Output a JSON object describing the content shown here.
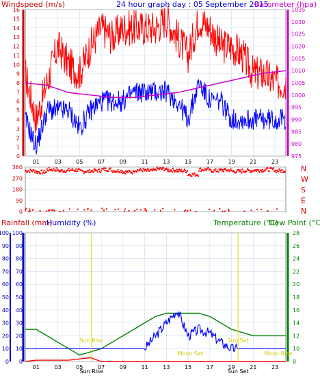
{
  "header": {
    "left_label": "Windspeed (m/s)",
    "title": "24 hour graph day : 05 September 2015",
    "right_label": "Barometer (hpa)"
  },
  "colors": {
    "bg": "#ffffff",
    "grid": "#ccddee",
    "frame": "#000000",
    "wind": "#ff0000",
    "gust": "#ff0000",
    "avg_wind": "#0000ff",
    "barometer": "#cc00cc",
    "winddir": "#ff0000",
    "rain": "#ff0000",
    "humidity": "#0000ff",
    "temperature": "#008000",
    "dewpoint": "#008000",
    "sun": "#dddd00",
    "moon": "#ddcc00"
  },
  "bottom_header": {
    "rain_label": "Rainfall (mm)",
    "hum_label": "Humidity (%)",
    "temp_label": "Temperature (°C)",
    "dew_label": "Dew Point (°C)"
  },
  "direction_labels": [
    "N",
    "W",
    "S",
    "E",
    "N"
  ],
  "event_labels": {
    "sun_rise": "Sun Rise",
    "sun_set": "Sun Set",
    "moon_set": "Moon Set",
    "moon_rise": "Moon Rise",
    "axis_sunrise": "Sun Rise",
    "axis_sunset": "Sun Set"
  },
  "chart_data": [
    {
      "type": "line",
      "name": "wind",
      "x_ticks": [
        "01",
        "03",
        "05",
        "07",
        "09",
        "11",
        "13",
        "15",
        "17",
        "19",
        "21",
        "23"
      ],
      "y_left_ticks": [
        "0",
        "1",
        "2",
        "3",
        "4",
        "5",
        "6",
        "7",
        "8",
        "9",
        "10",
        "11",
        "12",
        "13",
        "14",
        "15",
        "16"
      ],
      "y_right_ticks": [
        "975",
        "980",
        "985",
        "990",
        "995",
        "1000",
        "1005",
        "1010",
        "1015",
        "1020",
        "1025",
        "1030",
        "1035"
      ],
      "ylim_left": [
        0,
        16
      ],
      "ylim_right": [
        975,
        1035
      ],
      "series": [
        {
          "name": "Windspeed",
          "x": [
            0,
            1,
            2,
            3,
            4,
            5,
            6,
            7,
            8,
            9,
            10,
            11,
            12,
            13,
            14,
            15,
            16,
            17,
            18,
            19,
            20,
            21,
            22,
            23,
            24
          ],
          "values": [
            9,
            4,
            8,
            12,
            10,
            9,
            12,
            14,
            13,
            14,
            14,
            14,
            14,
            15,
            13,
            11,
            15,
            14,
            12,
            12,
            11,
            9,
            9,
            8,
            8
          ]
        },
        {
          "name": "Gust",
          "x": [
            0,
            1,
            2,
            3,
            4,
            5,
            6,
            7,
            8,
            9,
            10,
            11,
            12,
            13,
            14,
            15,
            16,
            17,
            18,
            19,
            20,
            21,
            22,
            23,
            24
          ],
          "values": [
            4,
            1,
            5,
            5,
            5,
            3,
            5,
            6,
            6,
            6,
            7,
            7,
            7,
            7,
            6,
            4,
            8,
            6,
            6,
            4,
            4,
            4,
            4,
            4,
            4
          ]
        },
        {
          "name": "Barometer",
          "x": [
            0,
            2,
            4,
            6,
            8,
            10,
            12,
            14,
            16,
            18,
            20,
            22,
            24
          ],
          "values": [
            1005,
            1004,
            1001,
            1000,
            999,
            999,
            1000,
            1001,
            1003,
            1005,
            1007,
            1009,
            1010
          ]
        }
      ]
    },
    {
      "type": "scatter",
      "name": "wind_direction",
      "ylim": [
        0,
        360
      ],
      "y_ticks": [
        "0",
        "90",
        "180",
        "270",
        "360"
      ],
      "x": [
        0,
        1,
        2,
        3,
        4,
        5,
        6,
        7,
        8,
        9,
        10,
        11,
        12,
        13,
        14,
        15,
        16,
        17,
        18,
        19,
        20,
        21,
        22,
        23,
        24
      ],
      "values": [
        330,
        320,
        340,
        330,
        335,
        325,
        330,
        340,
        330,
        320,
        335,
        330,
        345,
        335,
        330,
        300,
        340,
        330,
        335,
        325,
        330,
        335,
        340,
        330,
        335
      ]
    },
    {
      "type": "line",
      "name": "rain_humidity_temperature",
      "x_ticks": [
        "01",
        "03",
        "05",
        "07",
        "09",
        "11",
        "13",
        "15",
        "17",
        "19",
        "21",
        "23"
      ],
      "y_left_ticks": [
        "0",
        "10",
        "20",
        "30",
        "40",
        "50",
        "60",
        "70",
        "80",
        "90",
        "100"
      ],
      "y_right_ticks": [
        "8",
        "10",
        "12",
        "14",
        "16",
        "18",
        "20",
        "22",
        "24",
        "26",
        "28"
      ],
      "ylim_left": [
        0,
        100
      ],
      "ylim_right": [
        8,
        28
      ],
      "series": [
        {
          "name": "Temperature",
          "x": [
            0,
            1,
            2,
            3,
            4,
            5,
            6,
            7,
            8,
            9,
            10,
            11,
            12,
            13,
            14,
            15,
            16,
            17,
            18,
            19,
            20,
            21,
            22,
            23,
            24
          ],
          "values": [
            13,
            13,
            12,
            11,
            10,
            9,
            9.5,
            10,
            11,
            12,
            13,
            14,
            15,
            15.5,
            15.5,
            15.5,
            15.5,
            15,
            14,
            13,
            12.5,
            12,
            12,
            12,
            12
          ]
        },
        {
          "name": "Humidity",
          "x": [
            0,
            5,
            6,
            10,
            11,
            12,
            13,
            14,
            15,
            16,
            17,
            18,
            19,
            20,
            24
          ],
          "values": [
            10,
            10,
            10,
            10,
            10,
            20,
            30,
            40,
            20,
            25,
            22,
            15,
            10,
            10,
            10
          ]
        },
        {
          "name": "Rainfall",
          "x": [
            0,
            1,
            2,
            3,
            4,
            5,
            6,
            7,
            8,
            24
          ],
          "values": [
            0,
            1,
            1,
            1,
            1,
            2,
            3,
            0,
            0,
            0
          ]
        }
      ]
    }
  ]
}
